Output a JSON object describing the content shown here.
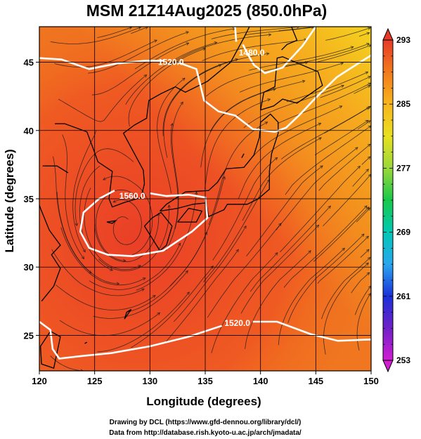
{
  "figure": {
    "title": "MSM 21Z14Aug2025 (850.0hPa)",
    "credits": [
      "Drawing by DCL (https://www.gfd-dennou.org/library/dcl/)",
      "Data from http://database.rish.kyoto-u.ac.jp/arch/jmadata/"
    ]
  },
  "chart_data": {
    "type": "heatmap",
    "title": "MSM 21Z14Aug2025 (850.0hPa)",
    "xlabel": "Longitude (degrees)",
    "ylabel": "Latitude  (degrees)",
    "xlim": [
      120,
      150
    ],
    "ylim": [
      22.4,
      47.6
    ],
    "xticks": [
      120,
      125,
      130,
      135,
      140,
      145,
      150
    ],
    "yticks": [
      25,
      30,
      35,
      40,
      45
    ],
    "grid": true,
    "overlays": [
      "coastlines",
      "streamlines",
      "geopotential-height-contours"
    ],
    "colorbar": {
      "location": "right",
      "min": 253,
      "max": 293,
      "ticks": [
        253,
        261,
        269,
        277,
        285,
        293
      ],
      "colors": [
        "#d21cd2",
        "#7020c8",
        "#1a30d8",
        "#2aa6ef",
        "#00c8b4",
        "#18c84a",
        "#9ad83a",
        "#e8e020",
        "#f7b51e",
        "#f27a1c",
        "#e63a28"
      ]
    },
    "contours": [
      {
        "label": "1520.0",
        "lon": 131.9,
        "lat": 45.0
      },
      {
        "label": "1480.0",
        "lon": 139.2,
        "lat": 45.7
      },
      {
        "label": "1560.0",
        "lon": 128.4,
        "lat": 35.2
      },
      {
        "label": "1520.0",
        "lon": 137.9,
        "lat": 25.9
      }
    ]
  }
}
